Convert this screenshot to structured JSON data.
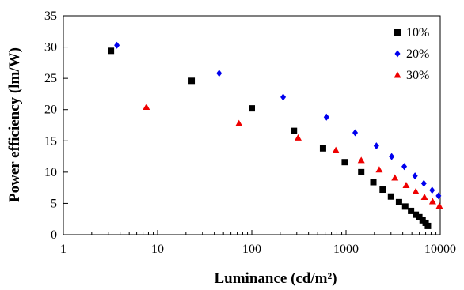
{
  "chart_data": {
    "type": "scatter",
    "xlabel": "Luminance (cd/m²)",
    "ylabel": "Power efficiency (lm/W)",
    "x_scale": "log",
    "xlim": [
      1,
      10000
    ],
    "ylim": [
      0,
      35
    ],
    "x_ticks": [
      1,
      10,
      100,
      1000,
      10000
    ],
    "x_tick_labels": [
      "1",
      "10",
      "100",
      "1000",
      "10000"
    ],
    "y_ticks": [
      0,
      5,
      10,
      15,
      20,
      25,
      30,
      35
    ],
    "y_tick_labels": [
      "0",
      "5",
      "10",
      "15",
      "20",
      "25",
      "30",
      "35"
    ],
    "grid": false,
    "legend_position": "top-right",
    "series": [
      {
        "name": "10%",
        "color": "#000000",
        "marker": "square",
        "x": [
          3.2,
          23,
          100,
          280,
          570,
          970,
          1450,
          1950,
          2450,
          3000,
          3650,
          4250,
          4900,
          5500,
          6000,
          6500,
          7000,
          7400
        ],
        "y": [
          29.4,
          24.6,
          20.2,
          16.6,
          13.8,
          11.6,
          10.0,
          8.4,
          7.2,
          6.1,
          5.2,
          4.5,
          3.8,
          3.2,
          2.8,
          2.3,
          1.9,
          1.4
        ]
      },
      {
        "name": "20%",
        "color": "#0000ee",
        "marker": "diamond",
        "x": [
          3.7,
          45,
          215,
          620,
          1250,
          2100,
          3050,
          4150,
          5400,
          6700,
          8200,
          9600
        ],
        "y": [
          30.3,
          25.8,
          22.0,
          18.8,
          16.3,
          14.2,
          12.5,
          10.9,
          9.4,
          8.2,
          7.1,
          6.2
        ]
      },
      {
        "name": "30%",
        "color": "#ee0000",
        "marker": "triangle",
        "x": [
          7.6,
          73,
          310,
          780,
          1450,
          2250,
          3300,
          4350,
          5500,
          6800,
          8300,
          9800
        ],
        "y": [
          20.4,
          17.8,
          15.5,
          13.5,
          11.9,
          10.4,
          9.1,
          7.9,
          6.9,
          6.0,
          5.3,
          4.6
        ]
      }
    ]
  }
}
